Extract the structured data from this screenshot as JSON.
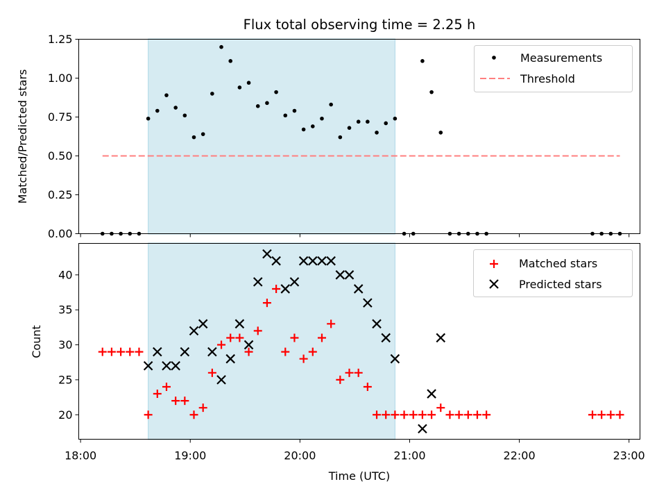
{
  "title": "Flux total observing time = 2.25 h",
  "xlabel": "Time (UTC)",
  "x_ticks": [
    "18:00",
    "19:00",
    "20:00",
    "21:00",
    "22:00",
    "23:00"
  ],
  "colors": {
    "shade": "#add8e6",
    "measure": "#000000",
    "threshold": "#ff7f7f",
    "matched": "#ff0000",
    "predicted": "#000000"
  },
  "chart_data": [
    {
      "type": "scatter",
      "ylabel": "Matched/Predicted stars",
      "xlim": [
        "17:59",
        "23:06"
      ],
      "ylim": [
        0,
        1.25
      ],
      "y_ticks": [
        "0.00",
        "0.25",
        "0.50",
        "0.75",
        "1.00",
        "1.25"
      ],
      "shaded_interval": [
        "18:37",
        "20:52"
      ],
      "legend_position": "top-right",
      "series": [
        {
          "name": "Measurements",
          "x": [
            "18:12",
            "18:17",
            "18:22",
            "18:27",
            "18:32",
            "18:37",
            "18:42",
            "18:47",
            "18:52",
            "18:57",
            "19:02",
            "19:07",
            "19:12",
            "19:17",
            "19:22",
            "19:27",
            "19:32",
            "19:37",
            "19:42",
            "19:47",
            "19:52",
            "19:57",
            "20:02",
            "20:07",
            "20:12",
            "20:17",
            "20:22",
            "20:27",
            "20:32",
            "20:37",
            "20:42",
            "20:47",
            "20:52",
            "20:57",
            "21:02",
            "21:07",
            "21:12",
            "21:17",
            "21:22",
            "21:27",
            "21:32",
            "21:37",
            "21:42",
            "22:40",
            "22:45",
            "22:50",
            "22:55"
          ],
          "values": [
            0,
            0,
            0,
            0,
            0,
            0.74,
            0.79,
            0.89,
            0.81,
            0.76,
            0.62,
            0.64,
            0.9,
            1.2,
            1.11,
            0.94,
            0.97,
            0.82,
            0.84,
            0.91,
            0.76,
            0.79,
            0.67,
            0.69,
            0.74,
            0.83,
            0.62,
            0.68,
            0.72,
            0.72,
            0.65,
            0.71,
            0.74,
            0,
            0,
            1.11,
            0.91,
            0.65,
            0,
            0,
            0,
            0,
            0,
            0,
            0,
            0,
            0
          ]
        },
        {
          "name": "Threshold",
          "x": [
            "18:12",
            "22:55"
          ],
          "values": [
            0.5,
            0.5
          ]
        }
      ]
    },
    {
      "type": "scatter",
      "ylabel": "Count",
      "xlim": [
        "17:59",
        "23:06"
      ],
      "ylim": [
        16.5,
        44.5
      ],
      "y_ticks": [
        "20",
        "25",
        "30",
        "35",
        "40"
      ],
      "shaded_interval": [
        "18:37",
        "20:52"
      ],
      "legend_position": "top-right",
      "series": [
        {
          "name": "Matched stars",
          "x": [
            "18:12",
            "18:17",
            "18:22",
            "18:27",
            "18:32",
            "18:37",
            "18:42",
            "18:47",
            "18:52",
            "18:57",
            "19:02",
            "19:07",
            "19:12",
            "19:17",
            "19:22",
            "19:27",
            "19:32",
            "19:37",
            "19:42",
            "19:47",
            "19:52",
            "19:57",
            "20:02",
            "20:07",
            "20:12",
            "20:17",
            "20:22",
            "20:27",
            "20:32",
            "20:37",
            "20:42",
            "20:47",
            "20:52",
            "20:57",
            "21:02",
            "21:07",
            "21:12",
            "21:17",
            "21:22",
            "21:27",
            "21:32",
            "21:37",
            "21:42",
            "22:40",
            "22:45",
            "22:50",
            "22:55"
          ],
          "values": [
            29,
            29,
            29,
            29,
            29,
            20,
            23,
            24,
            22,
            22,
            20,
            21,
            26,
            30,
            31,
            31,
            29,
            32,
            36,
            38,
            29,
            31,
            28,
            29,
            31,
            33,
            25,
            26,
            26,
            24,
            20,
            20,
            20,
            20,
            20,
            20,
            20,
            21,
            20,
            20,
            20,
            20,
            20,
            20,
            20,
            20,
            20
          ]
        },
        {
          "name": "Predicted stars",
          "x": [
            "18:37",
            "18:42",
            "18:47",
            "18:52",
            "18:57",
            "19:02",
            "19:07",
            "19:12",
            "19:17",
            "19:22",
            "19:27",
            "19:32",
            "19:37",
            "19:42",
            "19:47",
            "19:52",
            "19:57",
            "20:02",
            "20:07",
            "20:12",
            "20:17",
            "20:22",
            "20:27",
            "20:32",
            "20:37",
            "20:42",
            "20:47",
            "20:52",
            "21:07",
            "21:12",
            "21:17"
          ],
          "values": [
            27,
            29,
            27,
            27,
            29,
            32,
            33,
            29,
            25,
            28,
            33,
            30,
            39,
            43,
            42,
            38,
            39,
            42,
            42,
            42,
            42,
            40,
            40,
            38,
            36,
            33,
            31,
            28,
            18,
            23,
            31
          ]
        }
      ]
    }
  ]
}
